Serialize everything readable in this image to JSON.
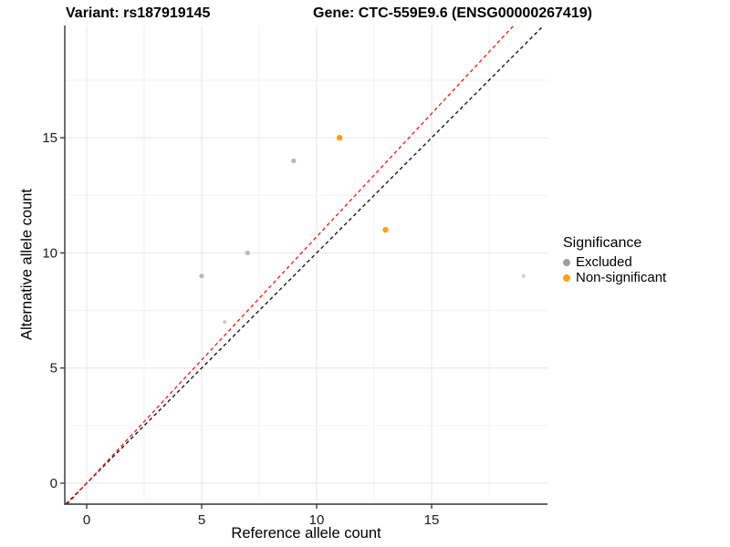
{
  "chart_data": {
    "type": "scatter",
    "titles": {
      "left": "Variant: rs187919145",
      "right": "Gene: CTC-559E9.6 (ENSG00000267419)"
    },
    "xlabel": "Reference allele count",
    "ylabel": "Alternative allele count",
    "x_range": [
      -0.95,
      20.05
    ],
    "y_range": [
      -0.91,
      19.87
    ],
    "x_ticks": [
      0,
      5,
      10,
      15
    ],
    "y_ticks": [
      0,
      5,
      10,
      15
    ],
    "x_minor_ticks": [
      2.5,
      7.5,
      12.5,
      17.5
    ],
    "y_minor_ticks": [
      2.5,
      7.5,
      12.5,
      17.5
    ],
    "grid": true,
    "colors": {
      "grid_major": "#e6e6e6",
      "grid_minor": "#f2f2f2",
      "axis": "#333333",
      "tick_label": "#1a1a1a"
    },
    "series": [
      {
        "name": "Excluded",
        "color": "#b8b8b8",
        "r": 2.6,
        "points": [
          {
            "x": 5,
            "y": 9
          },
          {
            "x": 6,
            "y": 7,
            "color": "#c9c9c9",
            "r": 2.1
          },
          {
            "x": 7,
            "y": 10,
            "color": "#bdbdbd"
          },
          {
            "x": 9,
            "y": 14
          },
          {
            "x": 19,
            "y": 9,
            "color": "#cfcfcf",
            "r": 2.1
          }
        ]
      },
      {
        "name": "Non-significant",
        "color": "#F9A01B",
        "r": 3.2,
        "points": [
          {
            "x": 11,
            "y": 15
          },
          {
            "x": 13,
            "y": 11
          }
        ]
      }
    ],
    "reference_lines": [
      {
        "name": "identity-line",
        "color": "#1a1a1a",
        "dash": "dashed",
        "slope": 1.0,
        "intercept": 0
      },
      {
        "name": "fit-line",
        "color": "#EE2222",
        "dash": "dashed",
        "slope": 1.07,
        "intercept": 0
      }
    ],
    "legend": {
      "title": "Significance",
      "position": "right",
      "items": [
        {
          "label": "Excluded",
          "color": "#9e9e9e"
        },
        {
          "label": "Non-significant",
          "color": "#F9A01B"
        }
      ]
    }
  }
}
